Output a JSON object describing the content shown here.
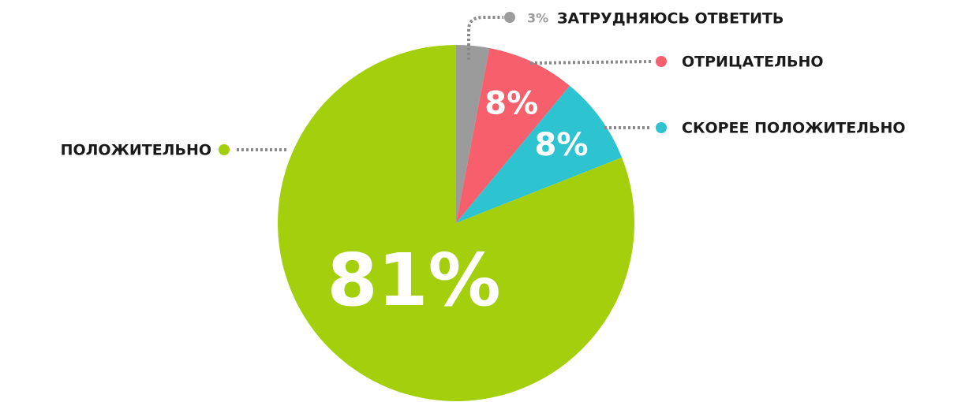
{
  "chart_data": {
    "type": "pie",
    "categories": [
      "ЗАТРУДНЯЮСЬ ОТВЕТИТЬ",
      "ОТРИЦАТЕЛЬНО",
      "СКОРЕЕ ПОЛОЖИТЕЛЬНО",
      "ПОЛОЖИТЕЛЬНО"
    ],
    "values": [
      3,
      8,
      8,
      81
    ],
    "value_labels": [
      "3%",
      "8%",
      "8%",
      "81%"
    ],
    "colors": [
      "#9b9b9b",
      "#f65f6b",
      "#2ec3d0",
      "#a4cf0c"
    ]
  }
}
